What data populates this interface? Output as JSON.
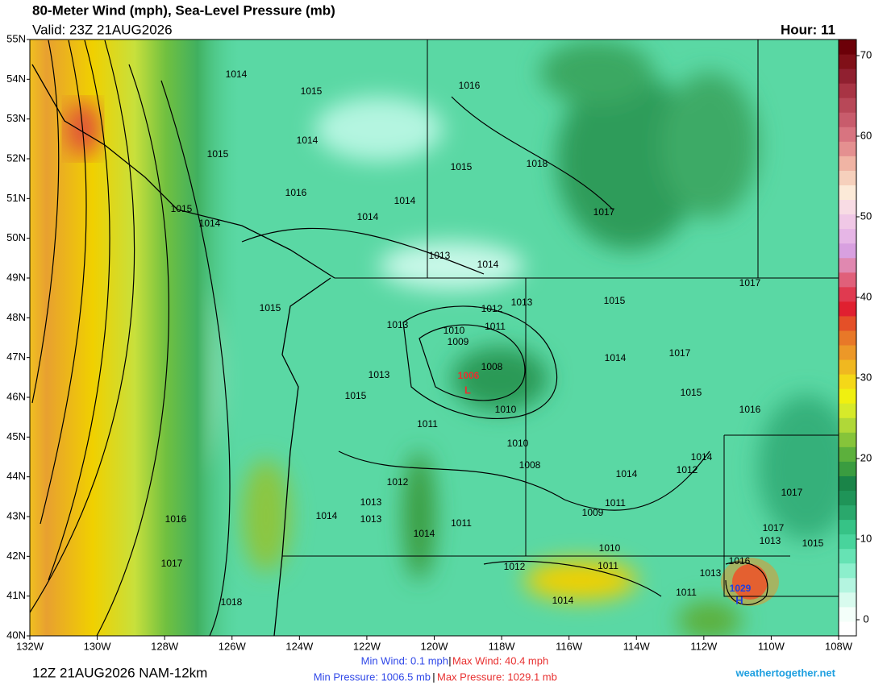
{
  "header": {
    "title": "80-Meter Wind (mph), Sea-Level Pressure (mb)",
    "valid": "Valid: 23Z 21AUG2026",
    "hour": "Hour: 11"
  },
  "map": {
    "lon_labels": [
      "132W",
      "130W",
      "128W",
      "126W",
      "124W",
      "122W",
      "120W",
      "118W",
      "116W",
      "114W",
      "112W",
      "110W",
      "108W"
    ],
    "lat_labels": [
      "40N",
      "41N",
      "42N",
      "43N",
      "44N",
      "45N",
      "46N",
      "47N",
      "48N",
      "49N",
      "50N",
      "51N",
      "52N",
      "53N",
      "54N",
      "55N"
    ],
    "isobar_labels": [
      1014,
      1015,
      1016,
      1014,
      1015,
      1015,
      1018,
      1016,
      1014,
      1014,
      1015,
      1014,
      1017,
      1013,
      1014,
      1017,
      1015,
      1012,
      1013,
      1015,
      1013,
      1010,
      1011,
      1009,
      1014,
      1017,
      1008,
      1013,
      1015,
      1015,
      1010,
      1011,
      1016,
      1010,
      1008,
      1014,
      1012,
      1014,
      1012,
      1011,
      1009,
      1017,
      1013,
      1014,
      1013,
      1016,
      1011,
      1014,
      1017,
      1013,
      1015,
      1010,
      1017,
      1012,
      1011,
      1016,
      1013,
      1014,
      1011,
      1018
    ],
    "low": {
      "symbol": "L",
      "value": 1006
    },
    "high": {
      "symbol": "H",
      "value": 1029
    }
  },
  "colorbar": {
    "lim": [
      -2,
      72
    ],
    "ticks": [
      0,
      10,
      20,
      30,
      40,
      50,
      60,
      70
    ],
    "colors": [
      "#ffffff",
      "#f4fffa",
      "#d8fbee",
      "#b4f5e0",
      "#8cefcc",
      "#66e3b4",
      "#48d49c",
      "#36c386",
      "#2aa86c",
      "#1f9458",
      "#1a8448",
      "#3a9c40",
      "#5cb03c",
      "#86c43a",
      "#b0d838",
      "#d6ea2a",
      "#f0f010",
      "#f4d818",
      "#f0b820",
      "#ec9828",
      "#e87828",
      "#e45028",
      "#e02030",
      "#e03a50",
      "#e0607a",
      "#e088b0",
      "#d8a0e0",
      "#e6b6e6",
      "#f0c8e6",
      "#f8dce4",
      "#fcead8",
      "#f6d0bc",
      "#f0b4a4",
      "#e49090",
      "#d87480",
      "#c85c6c",
      "#b84858",
      "#a83444",
      "#902030",
      "#801018",
      "#6c0008"
    ]
  },
  "footer": {
    "run": "12Z 21AUG2026 NAM-12km",
    "min_wind": "Min Wind:   0.1 mph",
    "separator": "|",
    "max_wind": "Max Wind: 40.4 mph",
    "min_pressure": "Min Pressure: 1006.5 mb",
    "max_pressure": "Max Pressure: 1029.1 mb",
    "site": "weathertogether.net"
  }
}
